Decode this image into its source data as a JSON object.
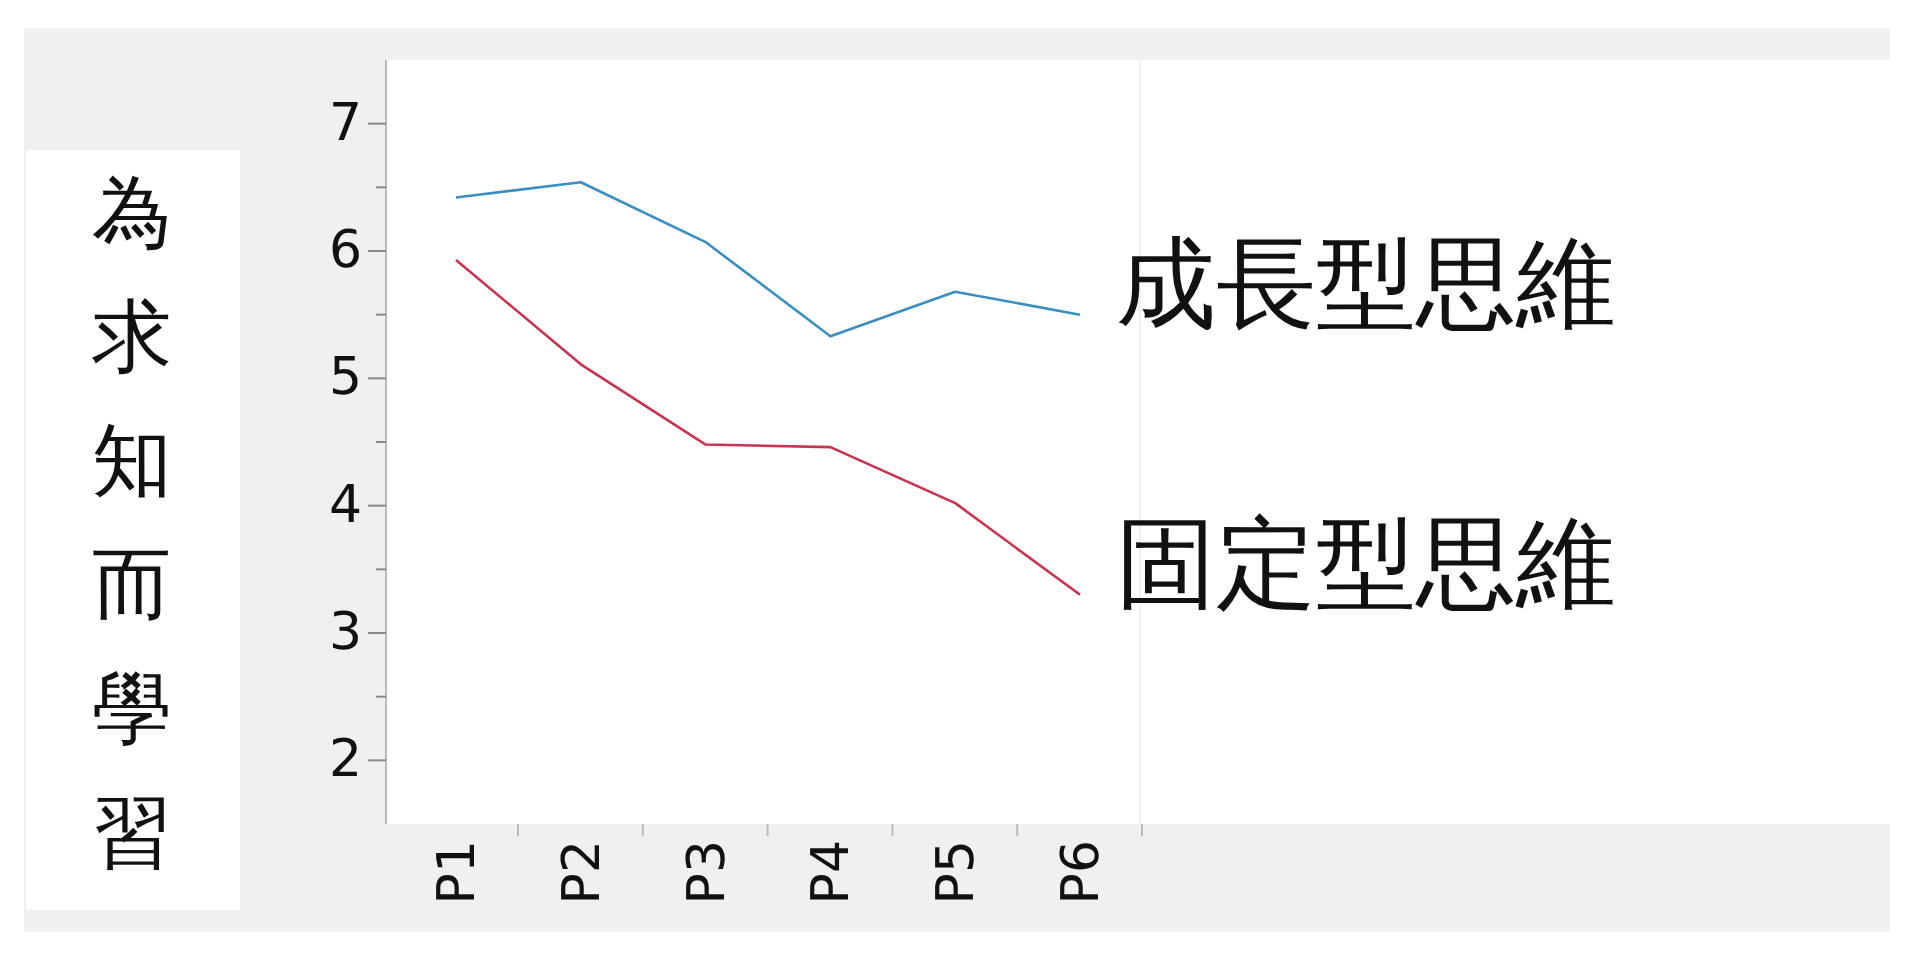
{
  "chart_data": {
    "type": "line",
    "ylabel": "為求知而學習",
    "categories": [
      "P1",
      "P2",
      "P3",
      "P4",
      "P5",
      "P6"
    ],
    "series": [
      {
        "name": "成長型思維",
        "color": "#3a8fc0",
        "values": [
          6.42,
          6.54,
          6.07,
          5.33,
          5.68,
          5.5
        ]
      },
      {
        "name": "固定型思維",
        "color": "#c8344f",
        "values": [
          5.93,
          5.11,
          4.48,
          4.46,
          4.02,
          3.3
        ]
      }
    ],
    "ylim": [
      1.5,
      7.5
    ],
    "yticks": [
      2,
      {
        "value": 2.5,
        "label": null
      },
      3,
      {
        "value": 3.5,
        "label": null
      },
      4,
      {
        "value": 4.5,
        "label": null
      },
      5,
      {
        "value": 5.5,
        "label": null
      },
      6,
      {
        "value": 6.5,
        "label": null
      },
      7
    ],
    "grid": false,
    "legend": false,
    "marker": "none",
    "line_style": "solid"
  }
}
